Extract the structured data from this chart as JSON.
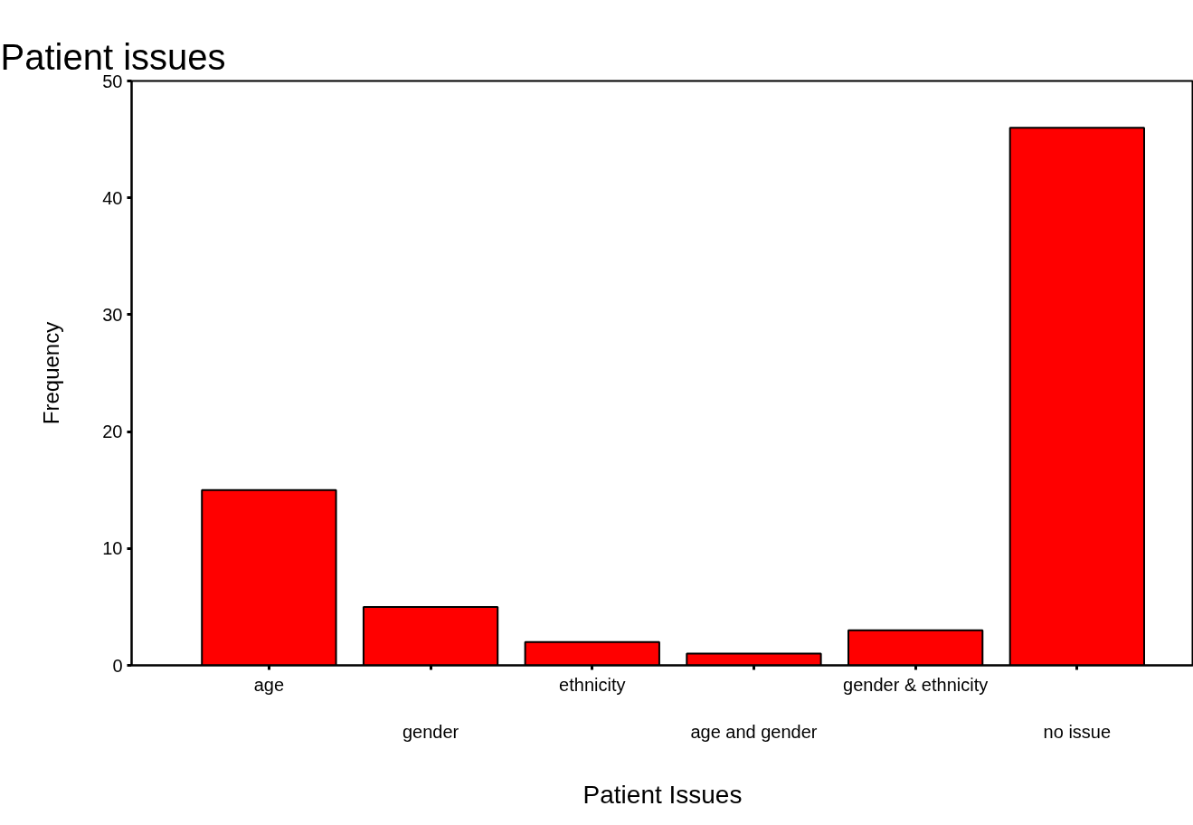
{
  "chart_data": {
    "type": "bar",
    "title": "Patient issues",
    "xlabel": "Patient Issues",
    "ylabel": "Frequency",
    "categories": [
      "age",
      "gender",
      "ethnicity",
      "age and gender",
      "gender & ethnicity",
      "no issue"
    ],
    "values": [
      15,
      5,
      2,
      1,
      3,
      46
    ],
    "color": "#ff0000",
    "ylim": [
      0,
      50
    ],
    "yticks": [
      0,
      10,
      20,
      30,
      40,
      50
    ],
    "grid": false
  }
}
